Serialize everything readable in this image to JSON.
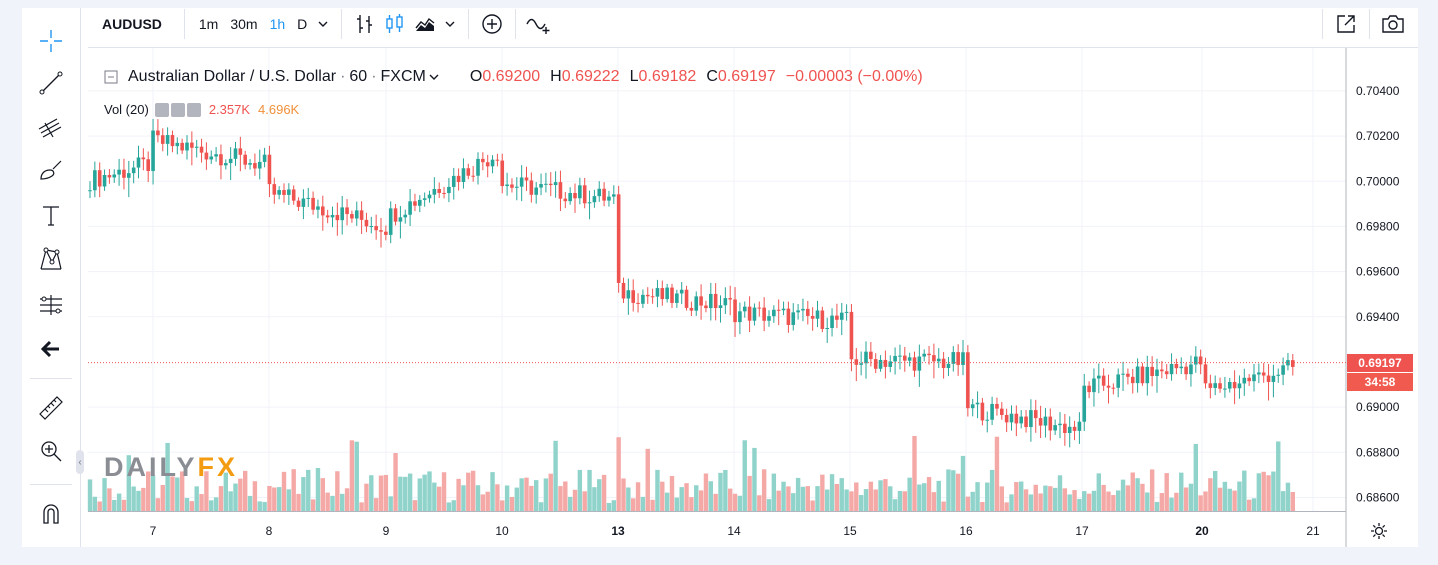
{
  "toolbar": {
    "symbol": "AUDUSD",
    "intervals": [
      "1m",
      "30m",
      "1h",
      "D"
    ],
    "active_interval": "1h"
  },
  "legend": {
    "title": "Australian Dollar / U.S. Dollar",
    "interval": "60",
    "source": "FXCM",
    "sep": "·",
    "o_label": "O",
    "o_value": "0.69200",
    "h_label": "H",
    "h_value": "0.69222",
    "l_label": "L",
    "l_value": "0.69182",
    "c_label": "C",
    "c_value": "0.69197",
    "change": "−0.00003 (−0.00%)"
  },
  "volume": {
    "label": "Vol (20)",
    "value1": "2.357K",
    "value2": "4.696K"
  },
  "logo": {
    "part1": "DAILY",
    "part2": "FX"
  },
  "current": {
    "price": "0.69197",
    "countdown": "34:58"
  },
  "colors": {
    "up": "#26a69a",
    "down": "#ef5350",
    "up_vol": "#8fd3cb",
    "down_vol": "#f4a9a7",
    "accent": "#2196f3",
    "countdown_bg": "#f05a4f"
  },
  "icons": {
    "left": [
      "crosshair-icon",
      "trend-line-icon",
      "pitchfork-icon",
      "brush-icon",
      "text-icon",
      "pattern-icon",
      "projection-icon",
      "back-arrow-icon",
      "ruler-icon",
      "zoom-icon",
      "magnet-icon"
    ],
    "top": [
      "bar-chart-icon",
      "candlestick-icon",
      "area-chart-icon",
      "add-indicator-icon",
      "compare-icon",
      "fullscreen-icon",
      "screenshot-icon"
    ]
  },
  "chart_data": {
    "type": "candlestick",
    "series_name": "AUDUSD",
    "y_ticks": [
      "0.70400",
      "0.70200",
      "0.70000",
      "0.69800",
      "0.69600",
      "0.69400",
      "0.69000",
      "0.68800",
      "0.68600"
    ],
    "y_tick_values": [
      0.704,
      0.702,
      0.7,
      0.698,
      0.696,
      0.694,
      0.69,
      0.688,
      0.686
    ],
    "x_ticks": [
      "7",
      "8",
      "9",
      "10",
      "13",
      "14",
      "15",
      "16",
      "17",
      "20",
      "21"
    ],
    "x_ticks_bold": [
      "13",
      "20"
    ],
    "ylim": [
      0.6854,
      0.7059
    ],
    "last_price": 0.69197,
    "grid": true,
    "path": [
      [
        "5",
        0.6996
      ],
      [
        "7",
        0.7008
      ],
      [
        "7",
        0.7036
      ],
      [
        "7",
        0.7018
      ],
      [
        "8",
        0.7007
      ],
      [
        "8",
        0.7022
      ],
      [
        "8",
        0.6998
      ],
      [
        "8",
        0.6995
      ],
      [
        "9",
        0.698
      ],
      [
        "9",
        0.6974
      ],
      [
        "9",
        0.6984
      ],
      [
        "10",
        0.7014
      ],
      [
        "10",
        0.6995
      ],
      [
        "10",
        0.7005
      ],
      [
        "10",
        0.6999
      ],
      [
        "13",
        0.6992
      ],
      [
        "13",
        0.6978
      ],
      [
        "13",
        0.698
      ],
      [
        "13",
        0.6951
      ],
      [
        "14",
        0.6945
      ],
      [
        "14",
        0.6953
      ],
      [
        "14",
        0.6948
      ],
      [
        "14",
        0.6942
      ],
      [
        "15",
        0.6938
      ],
      [
        "15",
        0.6925
      ],
      [
        "15",
        0.6928
      ],
      [
        "15",
        0.6921
      ],
      [
        "16",
        0.692
      ],
      [
        "16",
        0.6931
      ],
      [
        "16",
        0.69
      ],
      [
        "17",
        0.689
      ],
      [
        "17",
        0.6885
      ],
      [
        "17",
        0.6878
      ],
      [
        "17",
        0.686
      ],
      [
        "17",
        0.6908
      ],
      [
        "20",
        0.692
      ],
      [
        "20",
        0.6928
      ],
      [
        "20",
        0.6913
      ],
      [
        "20",
        0.6907
      ],
      [
        "21",
        0.69197
      ]
    ]
  }
}
